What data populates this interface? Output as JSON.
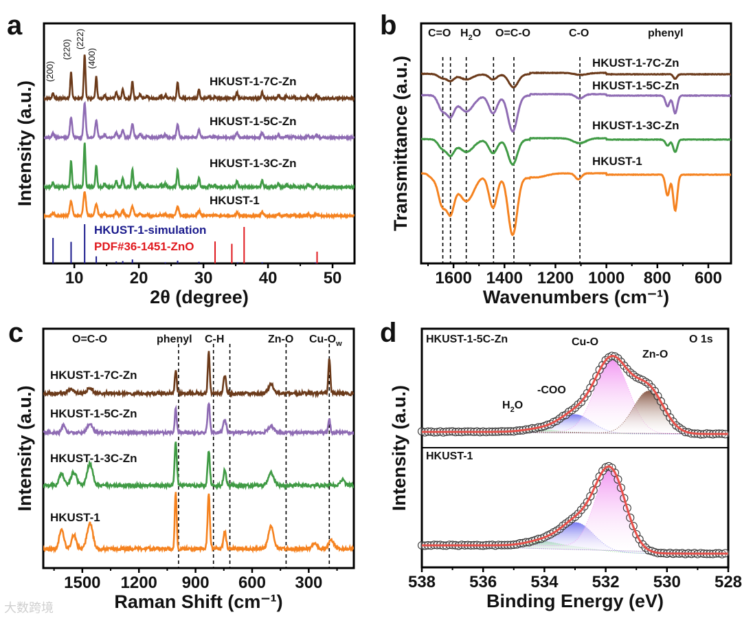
{
  "watermark": "大数跨境",
  "chart_data": [
    {
      "panel": "a",
      "type": "line",
      "xlabel": "2θ (degree)",
      "ylabel": "Intensity (a.u.)",
      "xlim": [
        5.3,
        53.4
      ],
      "xticks": [
        10,
        20,
        30,
        40,
        50
      ],
      "xtick_labels": [
        "10",
        "20",
        "30",
        "40",
        "50"
      ],
      "minor_step": 5,
      "peaks": [
        [
          6.7,
          0.12
        ],
        [
          9.5,
          0.6
        ],
        [
          11.6,
          1.0
        ],
        [
          13.4,
          0.5
        ],
        [
          14.7,
          0.08
        ],
        [
          16.5,
          0.15
        ],
        [
          17.5,
          0.22
        ],
        [
          19.0,
          0.4
        ],
        [
          20.2,
          0.1
        ],
        [
          21.3,
          0.05
        ],
        [
          23.4,
          0.05
        ],
        [
          24.1,
          0.08
        ],
        [
          26.0,
          0.38
        ],
        [
          29.3,
          0.22
        ],
        [
          30.9,
          0.04
        ],
        [
          31.8,
          0.04
        ],
        [
          35.2,
          0.14
        ],
        [
          39.1,
          0.15
        ],
        [
          41.6,
          0.08
        ],
        [
          42.9,
          0.05
        ],
        [
          44.0,
          0.04
        ],
        [
          46.2,
          0.06
        ],
        [
          47.5,
          0.08
        ]
      ],
      "series": [
        {
          "name": "HKUST-1-7C-Zn",
          "color": "#6b3a1a",
          "relative_scale": 1.0,
          "peak_width_deg": 0.13
        },
        {
          "name": "HKUST-1-5C-Zn",
          "color": "#8e6bb3",
          "relative_scale": 0.8,
          "peak_width_deg": 0.17
        },
        {
          "name": "HKUST-1-3C-Zn",
          "color": "#3f9a44",
          "relative_scale": 1.0,
          "peak_width_deg": 0.13
        },
        {
          "name": "HKUST-1",
          "color": "#f5821f",
          "relative_scale": 0.56,
          "peak_width_deg": 0.2
        }
      ],
      "hkl_labels": [
        {
          "text": "(200)",
          "x": 6.7
        },
        {
          "text": "(220)",
          "x": 9.5
        },
        {
          "text": "(222)",
          "x": 11.6
        },
        {
          "text": "(400)",
          "x": 13.4
        }
      ],
      "references": [
        {
          "name": "HKUST-1-simulation",
          "color": "#1a1a8c",
          "sticks": [
            [
              6.7,
              0.65
            ],
            [
              9.5,
              0.55
            ],
            [
              11.6,
              1.0
            ],
            [
              13.4,
              0.18
            ],
            [
              16.5,
              0.05
            ],
            [
              17.5,
              0.06
            ],
            [
              19.0,
              0.1
            ],
            [
              24.1,
              0.03
            ],
            [
              26.0,
              0.07
            ],
            [
              29.3,
              0.04
            ],
            [
              35.3,
              0.03
            ],
            [
              39.1,
              0.03
            ],
            [
              47.4,
              0.03
            ]
          ]
        },
        {
          "name": "PDF#36-1451-ZnO",
          "color": "#e0191e",
          "sticks": [
            [
              31.8,
              0.56
            ],
            [
              34.4,
              0.5
            ],
            [
              36.3,
              0.93
            ],
            [
              47.6,
              0.3
            ]
          ]
        }
      ]
    },
    {
      "panel": "b",
      "type": "line",
      "xlabel": "Wavenumbers (cm⁻¹)",
      "ylabel": "Transmittance (a.u.)",
      "xlim": [
        1727,
        511
      ],
      "xticks": [
        1600,
        1400,
        1200,
        1000,
        800,
        600
      ],
      "xtick_labels": [
        "1600",
        "1400",
        "1200",
        "1000",
        "800",
        "600"
      ],
      "minor_step": 100,
      "band_lines": [
        1642,
        1612,
        1550,
        1443,
        1363,
        1104
      ],
      "band_labels": [
        {
          "text": "C=O"
        },
        {
          "text": "H",
          "sub": "2",
          "rest": "O"
        },
        {
          "text": "O=C-O"
        },
        {
          "text": "C-O"
        },
        {
          "text": "phenyl"
        }
      ],
      "series": [
        {
          "name": "HKUST-1-7C-Zn",
          "color": "#6b3a1a",
          "dips": [
            [
              1645,
              0.3,
              15
            ],
            [
              1612,
              0.5,
              14
            ],
            [
              1550,
              0.4,
              25
            ],
            [
              1445,
              0.4,
              15
            ],
            [
              1365,
              1.0,
              18
            ],
            [
              1100,
              0.15,
              25
            ],
            [
              730,
              0.35,
              7
            ]
          ]
        },
        {
          "name": "HKUST-1-5C-Zn",
          "color": "#8e6bb3",
          "dips": [
            [
              1645,
              0.4,
              15
            ],
            [
              1612,
              0.55,
              15
            ],
            [
              1550,
              0.45,
              28
            ],
            [
              1445,
              0.5,
              16
            ],
            [
              1368,
              1.0,
              18
            ],
            [
              1105,
              0.12,
              15
            ],
            [
              760,
              0.3,
              8
            ],
            [
              730,
              0.5,
              8
            ]
          ]
        },
        {
          "name": "HKUST-1-3C-Zn",
          "color": "#3f9a44",
          "dips": [
            [
              1645,
              0.35,
              15
            ],
            [
              1612,
              0.6,
              15
            ],
            [
              1550,
              0.5,
              28
            ],
            [
              1445,
              0.55,
              16
            ],
            [
              1368,
              1.0,
              18
            ],
            [
              1105,
              0.2,
              25
            ],
            [
              760,
              0.25,
              8
            ],
            [
              730,
              0.5,
              8
            ]
          ]
        },
        {
          "name": "HKUST-1",
          "color": "#f5821f",
          "dips": [
            [
              1680,
              0.08,
              15
            ],
            [
              1645,
              0.5,
              15
            ],
            [
              1612,
              0.6,
              15
            ],
            [
              1550,
              0.45,
              30
            ],
            [
              1445,
              0.55,
              16
            ],
            [
              1368,
              1.0,
              18
            ],
            [
              1280,
              0.07,
              40
            ],
            [
              1110,
              0.1,
              12
            ],
            [
              760,
              0.35,
              8
            ],
            [
              730,
              0.6,
              8
            ]
          ]
        }
      ]
    },
    {
      "panel": "c",
      "type": "line",
      "xlabel": "Raman Shift (cm⁻¹)",
      "ylabel": "Intensity (a.u.)",
      "xlim": [
        1707,
        61
      ],
      "xticks": [
        1500,
        1200,
        900,
        600,
        300
      ],
      "xtick_labels": [
        "1500",
        "1200",
        "900",
        "600",
        "300"
      ],
      "minor_step": 150,
      "band_lines": [
        990,
        805,
        718,
        420,
        191
      ],
      "band_labels": [
        {
          "text": "O=C-O"
        },
        {
          "text": "phenyl"
        },
        {
          "text": "C-H"
        },
        {
          "text": "Zn-O"
        },
        {
          "text": "Cu-O",
          "sub": "w"
        }
      ],
      "series": [
        {
          "name": "HKUST-1-7C-Zn",
          "color": "#6b3a1a",
          "peaks": [
            [
              1560,
              0.1,
              15
            ],
            [
              1460,
              0.12,
              15
            ],
            [
              1005,
              0.55,
              5
            ],
            [
              830,
              1.0,
              5
            ],
            [
              745,
              0.4,
              7
            ],
            [
              500,
              0.2,
              15
            ],
            [
              191,
              0.85,
              5
            ]
          ]
        },
        {
          "name": "HKUST-1-5C-Zn",
          "color": "#8e6bb3",
          "peaks": [
            [
              1600,
              0.28,
              8
            ],
            [
              1460,
              0.28,
              15
            ],
            [
              1005,
              0.8,
              5
            ],
            [
              830,
              1.0,
              6
            ],
            [
              745,
              0.4,
              8
            ],
            [
              500,
              0.2,
              15
            ],
            [
              191,
              0.45,
              5
            ]
          ]
        },
        {
          "name": "HKUST-1-3C-Zn",
          "color": "#3f9a44",
          "peaks": [
            [
              1610,
              0.3,
              12
            ],
            [
              1545,
              0.3,
              15
            ],
            [
              1460,
              0.5,
              15
            ],
            [
              1005,
              1.0,
              6
            ],
            [
              830,
              0.8,
              6
            ],
            [
              745,
              0.35,
              7
            ],
            [
              500,
              0.3,
              15
            ],
            [
              120,
              0.15,
              10
            ]
          ]
        },
        {
          "name": "HKUST-1",
          "color": "#f5821f",
          "peaks": [
            [
              1610,
              0.35,
              12
            ],
            [
              1545,
              0.25,
              12
            ],
            [
              1460,
              0.45,
              15
            ],
            [
              1005,
              1.0,
              5
            ],
            [
              830,
              0.95,
              6
            ],
            [
              745,
              0.3,
              7
            ],
            [
              500,
              0.4,
              14
            ],
            [
              270,
              0.1,
              12
            ],
            [
              180,
              0.15,
              15
            ]
          ]
        }
      ]
    },
    {
      "panel": "d",
      "type": "line",
      "xlabel": "Binding Energy (eV)",
      "ylabel": "Intensity (a.u.)",
      "xlim": [
        538,
        528
      ],
      "xticks": [
        538,
        536,
        534,
        532,
        530,
        528
      ],
      "xtick_labels": [
        "538",
        "536",
        "534",
        "532",
        "530",
        "528"
      ],
      "minor_step": 1,
      "corner_label": "O 1s",
      "subplots": [
        {
          "name": "HKUST-1-5C-Zn",
          "components": [
            {
              "label": "H",
              "sub": "2",
              "rest": "O",
              "center": 534.2,
              "height": 0.03,
              "sigma": 0.5,
              "color": "#8fe08f"
            },
            {
              "label": "-COO",
              "center": 533.0,
              "height": 0.2,
              "sigma": 0.55,
              "color": "#7a7af0"
            },
            {
              "label": "Cu-O",
              "center": 531.8,
              "height": 0.82,
              "sigma": 0.55,
              "color": "#f29af2"
            },
            {
              "label": "Zn-O",
              "center": 530.6,
              "height": 0.48,
              "sigma": 0.5,
              "color": "#8a5a48"
            }
          ]
        },
        {
          "name": "HKUST-1",
          "components": [
            {
              "center": 534.1,
              "height": 0.05,
              "sigma": 0.5,
              "color": "#8fe08f"
            },
            {
              "center": 532.95,
              "height": 0.28,
              "sigma": 0.55,
              "color": "#7a7af0"
            },
            {
              "center": 531.85,
              "height": 0.92,
              "sigma": 0.5,
              "color": "#f29af2"
            }
          ]
        }
      ]
    }
  ]
}
